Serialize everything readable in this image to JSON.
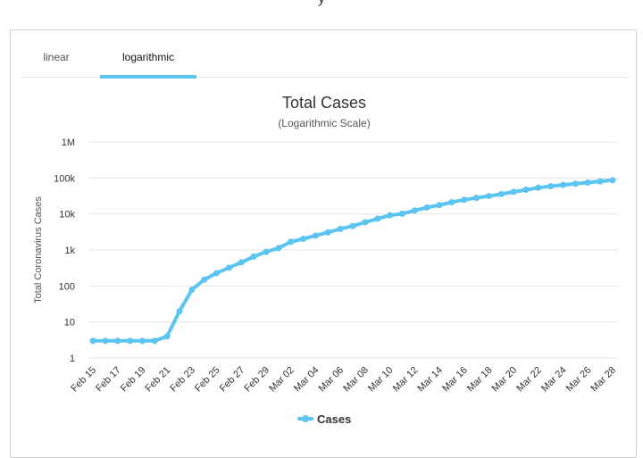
{
  "page": {
    "top_fragment": "y"
  },
  "tabs": [
    {
      "label": "linear",
      "active": false
    },
    {
      "label": "logarithmic",
      "active": true
    }
  ],
  "accent_color": "#5bc4f1",
  "chart_data": {
    "type": "line",
    "title": "Total Cases",
    "subtitle": "(Logarithmic Scale)",
    "ylabel": "Total Coronavirus Cases",
    "xlabel": "",
    "y_scale": "log",
    "ylim": [
      1,
      1000000
    ],
    "y_ticks": [
      {
        "value": 1,
        "label": "1"
      },
      {
        "value": 10,
        "label": "10"
      },
      {
        "value": 100,
        "label": "100"
      },
      {
        "value": 1000,
        "label": "1k"
      },
      {
        "value": 10000,
        "label": "10k"
      },
      {
        "value": 100000,
        "label": "100k"
      },
      {
        "value": 1000000,
        "label": "1M"
      }
    ],
    "x_tick_labels": [
      "Feb 15",
      "Feb 17",
      "Feb 19",
      "Feb 21",
      "Feb 23",
      "Feb 25",
      "Feb 27",
      "Feb 29",
      "Mar 02",
      "Mar 04",
      "Mar 06",
      "Mar 08",
      "Mar 10",
      "Mar 12",
      "Mar 14",
      "Mar 16",
      "Mar 18",
      "Mar 20",
      "Mar 22",
      "Mar 24",
      "Mar 26",
      "Mar 28"
    ],
    "legend": {
      "position": "bottom"
    },
    "grid": true,
    "series": [
      {
        "name": "Cases",
        "color": "#5bc4f1",
        "x": [
          "Feb 15",
          "Feb 16",
          "Feb 17",
          "Feb 18",
          "Feb 19",
          "Feb 20",
          "Feb 21",
          "Feb 22",
          "Feb 23",
          "Feb 24",
          "Feb 25",
          "Feb 26",
          "Feb 27",
          "Feb 28",
          "Feb 29",
          "Mar 01",
          "Mar 02",
          "Mar 03",
          "Mar 04",
          "Mar 05",
          "Mar 06",
          "Mar 07",
          "Mar 08",
          "Mar 09",
          "Mar 10",
          "Mar 11",
          "Mar 12",
          "Mar 13",
          "Mar 14",
          "Mar 15",
          "Mar 16",
          "Mar 17",
          "Mar 18",
          "Mar 19",
          "Mar 20",
          "Mar 21",
          "Mar 22",
          "Mar 23",
          "Mar 24",
          "Mar 25",
          "Mar 26",
          "Mar 27",
          "Mar 28"
        ],
        "values": [
          3,
          3,
          3,
          3,
          3,
          3,
          4,
          20,
          79,
          150,
          229,
          322,
          453,
          655,
          888,
          1128,
          1694,
          2036,
          2502,
          3089,
          3858,
          4636,
          5883,
          7375,
          9172,
          10149,
          12462,
          15113,
          17660,
          21157,
          24747,
          27980,
          31506,
          35713,
          41035,
          47021,
          53578,
          59138,
          63927,
          69176,
          74386,
          80589,
          86498
        ]
      }
    ]
  }
}
